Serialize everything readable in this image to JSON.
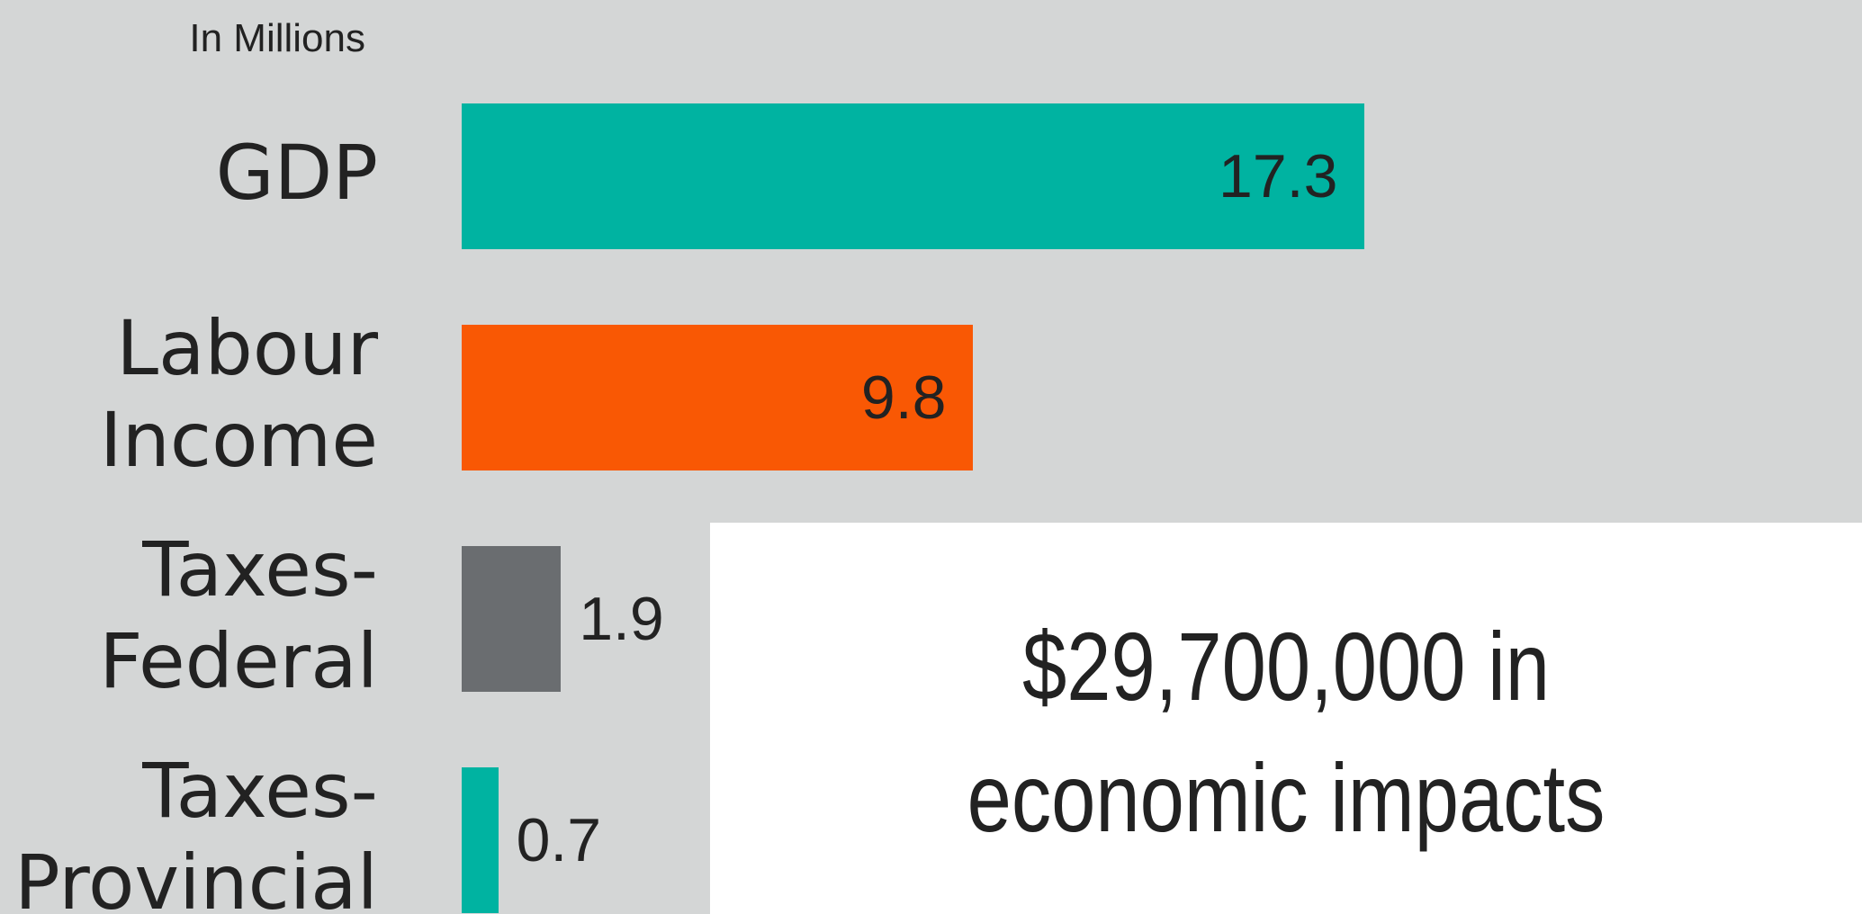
{
  "chart_data": {
    "type": "bar",
    "orientation": "horizontal",
    "unit_label": "In Millions",
    "categories": [
      "GDP",
      "Labour Income",
      "Taxes- Federal",
      "Taxes- Provincial"
    ],
    "values": [
      17.3,
      9.8,
      1.9,
      0.7
    ],
    "colors": [
      "#00b3a1",
      "#f95804",
      "#6a6d70",
      "#00b3a1"
    ],
    "callout": "$29,700,000 in economic impacts"
  }
}
